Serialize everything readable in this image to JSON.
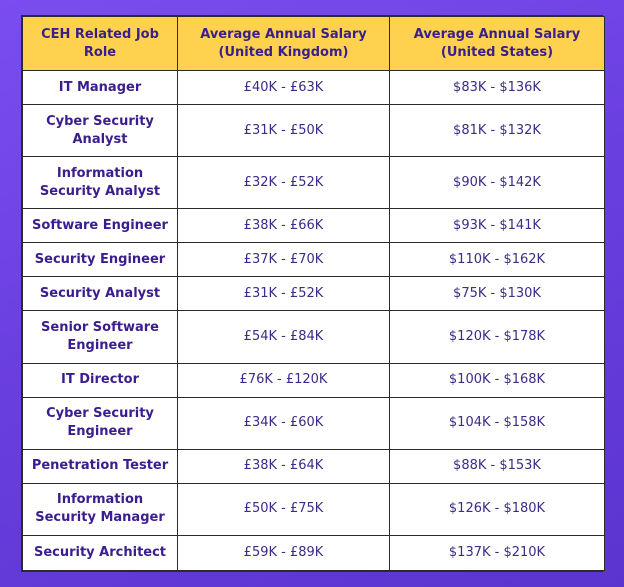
{
  "table": {
    "headers": [
      "CEH Related Job Role",
      "Average Annual Salary (United Kingdom)",
      "Average Annual Salary (United States)"
    ],
    "rows": [
      {
        "role": "IT Manager",
        "uk": "£40K - £63K",
        "us": "$83K - $136K"
      },
      {
        "role": "Cyber Security Analyst",
        "uk": "£31K - £50K",
        "us": "$81K - $132K"
      },
      {
        "role": "Information Security Analyst",
        "uk": "£32K - £52K",
        "us": "$90K - $142K"
      },
      {
        "role": "Software Engineer",
        "uk": "£38K - £66K",
        "us": "$93K - $141K"
      },
      {
        "role": "Security Engineer",
        "uk": "£37K - £70K",
        "us": "$110K - $162K"
      },
      {
        "role": "Security Analyst",
        "uk": "£31K - £52K",
        "us": "$75K - $130K"
      },
      {
        "role": "Senior Software Engineer",
        "uk": "£54K - £84K",
        "us": "$120K - $178K"
      },
      {
        "role": "IT Director",
        "uk": "£76K - £120K",
        "us": "$100K - $168K"
      },
      {
        "role": "Cyber Security Engineer",
        "uk": "£34K - £60K",
        "us": "$104K - $158K"
      },
      {
        "role": "Penetration Tester",
        "uk": "£38K - £64K",
        "us": "$88K - $153K"
      },
      {
        "role": "Information Security Manager",
        "uk": "£50K - £75K",
        "us": "$126K - $180K"
      },
      {
        "role": "Security Architect",
        "uk": "£59K - £89K",
        "us": "$137K - $210K"
      }
    ]
  }
}
